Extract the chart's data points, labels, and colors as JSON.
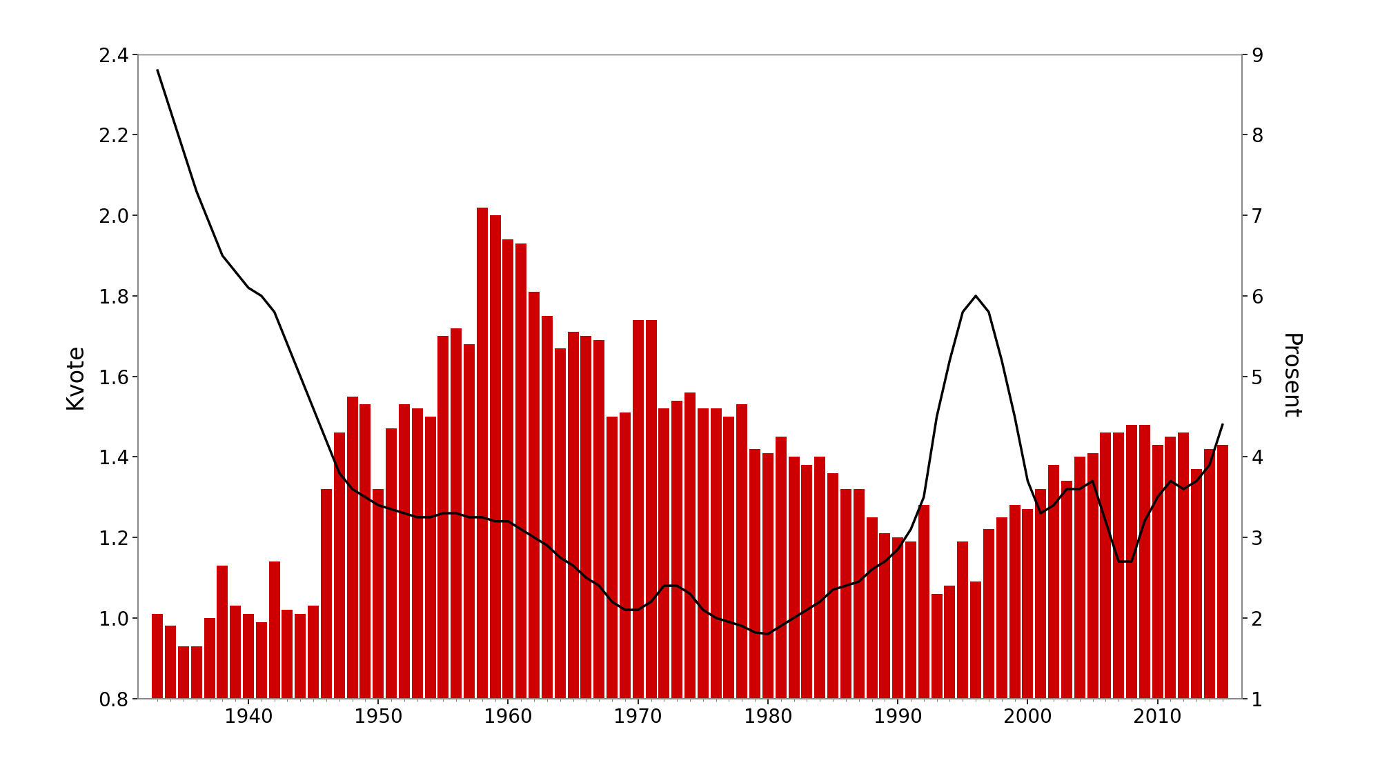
{
  "years": [
    1933,
    1934,
    1935,
    1936,
    1937,
    1938,
    1939,
    1940,
    1941,
    1942,
    1943,
    1944,
    1945,
    1946,
    1947,
    1948,
    1949,
    1950,
    1951,
    1952,
    1953,
    1954,
    1955,
    1956,
    1957,
    1958,
    1959,
    1960,
    1961,
    1962,
    1963,
    1964,
    1965,
    1966,
    1967,
    1968,
    1969,
    1970,
    1971,
    1972,
    1973,
    1974,
    1975,
    1976,
    1977,
    1978,
    1979,
    1980,
    1981,
    1982,
    1983,
    1984,
    1985,
    1986,
    1987,
    1988,
    1989,
    1990,
    1991,
    1992,
    1993,
    1994,
    1995,
    1996,
    1997,
    1998,
    1999,
    2000,
    2001,
    2002,
    2003,
    2004,
    2005,
    2006,
    2007,
    2008,
    2009,
    2010,
    2011,
    2012,
    2013,
    2014,
    2015
  ],
  "bar_values": [
    1.01,
    0.98,
    0.93,
    0.93,
    1.0,
    1.13,
    1.03,
    1.01,
    0.99,
    1.14,
    1.02,
    1.01,
    1.03,
    1.32,
    1.46,
    1.55,
    1.53,
    1.32,
    1.47,
    1.53,
    1.52,
    1.5,
    1.7,
    1.72,
    1.68,
    2.02,
    2.0,
    1.94,
    1.93,
    1.81,
    1.75,
    1.67,
    1.71,
    1.7,
    1.69,
    1.5,
    1.51,
    1.74,
    1.74,
    1.52,
    1.54,
    1.56,
    1.52,
    1.52,
    1.5,
    1.53,
    1.42,
    1.41,
    1.45,
    1.4,
    1.38,
    1.4,
    1.36,
    1.32,
    1.32,
    1.25,
    1.21,
    1.2,
    1.19,
    1.28,
    1.06,
    1.08,
    1.19,
    1.09,
    1.22,
    1.25,
    1.28,
    1.27,
    1.32,
    1.38,
    1.34,
    1.4,
    1.41,
    1.46,
    1.46,
    1.48,
    1.48,
    1.43,
    1.45,
    1.46,
    1.37,
    1.42,
    1.43
  ],
  "line_years": [
    1933,
    1934,
    1935,
    1936,
    1937,
    1938,
    1939,
    1940,
    1941,
    1942,
    1943,
    1944,
    1945,
    1946,
    1947,
    1948,
    1949,
    1950,
    1951,
    1952,
    1953,
    1954,
    1955,
    1956,
    1957,
    1958,
    1959,
    1960,
    1961,
    1962,
    1963,
    1964,
    1965,
    1966,
    1967,
    1968,
    1969,
    1970,
    1971,
    1972,
    1973,
    1974,
    1975,
    1976,
    1977,
    1978,
    1979,
    1980,
    1981,
    1982,
    1983,
    1984,
    1985,
    1986,
    1987,
    1988,
    1989,
    1990,
    1991,
    1992,
    1993,
    1994,
    1995,
    1996,
    1997,
    1998,
    1999,
    2000,
    2001,
    2002,
    2003,
    2004,
    2005,
    2006,
    2007,
    2008,
    2009,
    2010,
    2011,
    2012,
    2013,
    2014,
    2015
  ],
  "line_values": [
    8.8,
    8.3,
    7.8,
    7.3,
    6.9,
    6.5,
    6.3,
    6.1,
    6.0,
    5.8,
    5.4,
    5.0,
    4.6,
    4.2,
    3.8,
    3.6,
    3.5,
    3.4,
    3.35,
    3.3,
    3.25,
    3.25,
    3.3,
    3.3,
    3.25,
    3.25,
    3.2,
    3.2,
    3.1,
    3.0,
    2.9,
    2.75,
    2.65,
    2.5,
    2.4,
    2.2,
    2.1,
    2.1,
    2.2,
    2.4,
    2.4,
    2.3,
    2.1,
    2.0,
    1.95,
    1.9,
    1.82,
    1.8,
    1.9,
    2.0,
    2.1,
    2.2,
    2.35,
    2.4,
    2.45,
    2.6,
    2.7,
    2.85,
    3.1,
    3.5,
    4.5,
    5.2,
    5.8,
    6.0,
    5.8,
    5.2,
    4.5,
    3.7,
    3.3,
    3.4,
    3.6,
    3.6,
    3.7,
    3.2,
    2.7,
    2.7,
    3.2,
    3.5,
    3.7,
    3.6,
    3.7,
    3.9,
    4.4
  ],
  "bar_color": "#cc0000",
  "line_color": "#000000",
  "ylim_left": [
    0.8,
    2.4
  ],
  "ylim_right": [
    1.0,
    9.0
  ],
  "yticks_left": [
    0.8,
    1.0,
    1.2,
    1.4,
    1.6,
    1.8,
    2.0,
    2.2,
    2.4
  ],
  "yticks_right": [
    1,
    2,
    3,
    4,
    5,
    6,
    7,
    8,
    9
  ],
  "xticks": [
    1940,
    1950,
    1960,
    1970,
    1980,
    1990,
    2000,
    2010
  ],
  "ylabel_left": "Kvote",
  "ylabel_right": "Prosent",
  "background_color": "#ffffff",
  "spine_color": "#888888",
  "xlim": [
    1931.5,
    2016.5
  ],
  "bar_width": 0.85
}
